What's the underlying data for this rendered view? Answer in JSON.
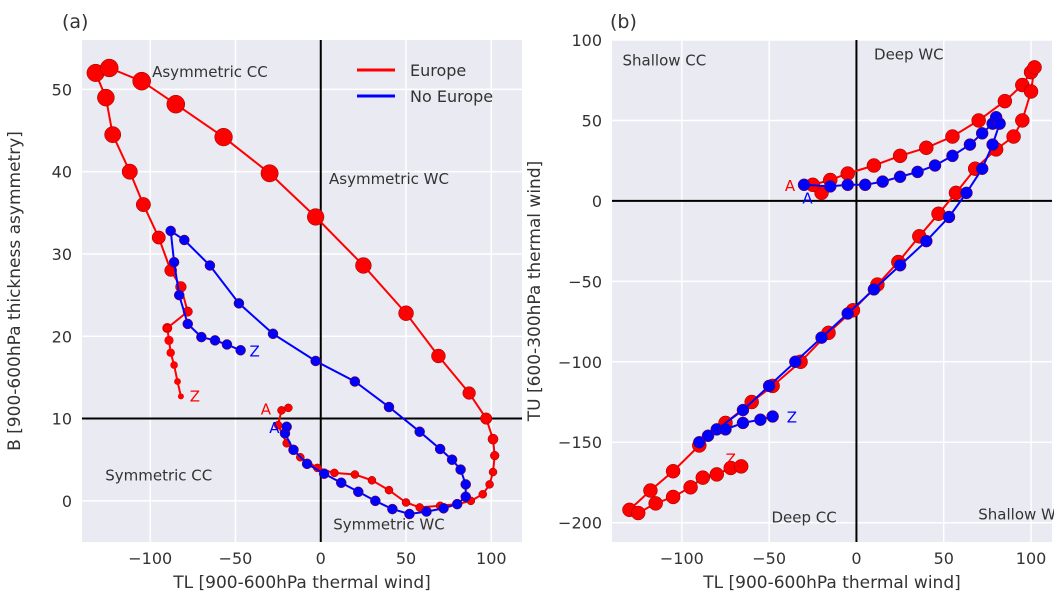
{
  "chart_data": [
    {
      "id": "a",
      "type": "scatter",
      "panel_label": "(a)",
      "xlabel": "TL [900-600hPa thermal wind]",
      "ylabel": "B [900-600hPa thickness asymmetry]",
      "xlim": [
        -140,
        118
      ],
      "ylim": [
        -5,
        56
      ],
      "xticks": [
        -100,
        -50,
        0,
        50,
        100
      ],
      "yticks": [
        0,
        10,
        20,
        30,
        40,
        50
      ],
      "xtick_labels": [
        "−100",
        "−50",
        "0",
        "50",
        "100"
      ],
      "ytick_labels": [
        "0",
        "10",
        "20",
        "30",
        "40",
        "50"
      ],
      "crosshair": {
        "x": 0,
        "y": 10
      },
      "grid": true,
      "background": "#eaeaf2",
      "legend": {
        "position": "top-right",
        "entries": [
          {
            "label": "Europe",
            "color": "#ff0000"
          },
          {
            "label": "No Europe",
            "color": "#0000ff"
          }
        ]
      },
      "quadrant_labels": [
        {
          "text": "Asymmetric CC",
          "x": -65,
          "y": 51.5
        },
        {
          "text": "Asymmetric WC",
          "x": 40,
          "y": 38.5
        },
        {
          "text": "Symmetric CC",
          "x": -95,
          "y": 2.5
        },
        {
          "text": "Symmetric WC",
          "x": 40,
          "y": -3.5
        }
      ],
      "series": [
        {
          "name": "Europe",
          "color": "#ff0000",
          "points": [
            [
              -90,
              21
            ],
            [
              -78,
              23
            ],
            [
              -82,
              26
            ],
            [
              -88,
              28
            ],
            [
              -95,
              32
            ],
            [
              -104,
              36
            ],
            [
              -112,
              40
            ],
            [
              -122,
              44.5
            ],
            [
              -126,
              49
            ],
            [
              -132,
              52
            ],
            [
              -124,
              52.6
            ],
            [
              -105,
              51
            ],
            [
              -85,
              48.2
            ],
            [
              -57,
              44.2
            ],
            [
              -30,
              39.8
            ],
            [
              -3,
              34.5
            ],
            [
              25,
              28.6
            ],
            [
              50,
              22.8
            ],
            [
              69,
              17.6
            ],
            [
              87,
              13.1
            ],
            [
              97,
              10
            ],
            [
              101,
              7.5
            ],
            [
              102,
              5.5
            ],
            [
              101,
              3.5
            ],
            [
              99,
              2
            ],
            [
              95,
              0.8
            ],
            [
              88,
              0
            ],
            [
              80,
              -0.4
            ],
            [
              70,
              -0.6
            ],
            [
              58,
              -0.8
            ],
            [
              50,
              -0.2
            ],
            [
              40,
              1.3
            ],
            [
              30,
              2.5
            ],
            [
              20,
              3.2
            ],
            [
              8,
              3.4
            ],
            [
              -2,
              4
            ],
            [
              -12,
              5.3
            ],
            [
              -20,
              7
            ],
            [
              -25,
              9.2
            ],
            [
              -23,
              11
            ],
            [
              -19,
              11.3
            ]
          ],
          "markers": {
            "sizes_grow": true
          },
          "end_labels": {
            "start": "A",
            "end": "Z",
            "start_at": [
              -24,
              11.2
            ],
            "end_at": [
              -82,
              12.8
            ]
          },
          "tail": [
            [
              -82,
              12.7
            ],
            [
              -84,
              14.5
            ],
            [
              -86,
              16.5
            ],
            [
              -88,
              18
            ],
            [
              -89,
              19.5
            ],
            [
              -90,
              21
            ]
          ]
        },
        {
          "name": "No Europe",
          "color": "#0000ff",
          "points": [
            [
              -47,
              18.3
            ],
            [
              -55,
              19
            ],
            [
              -62,
              19.5
            ],
            [
              -70,
              19.9
            ],
            [
              -78,
              21.5
            ],
            [
              -83,
              25
            ],
            [
              -86,
              29
            ],
            [
              -88,
              32.8
            ],
            [
              -80,
              31.7
            ],
            [
              -65,
              28.6
            ],
            [
              -48,
              24
            ],
            [
              -28,
              20.3
            ],
            [
              -3,
              17
            ],
            [
              20,
              14.5
            ],
            [
              40,
              11.4
            ],
            [
              58,
              8.4
            ],
            [
              70,
              6.3
            ],
            [
              77,
              5
            ],
            [
              82,
              3.8
            ],
            [
              85,
              2
            ],
            [
              85,
              0.5
            ],
            [
              80,
              -0.4
            ],
            [
              72,
              -0.9
            ],
            [
              62,
              -1.3
            ],
            [
              52,
              -1.6
            ],
            [
              42,
              -1
            ],
            [
              32,
              0
            ],
            [
              22,
              1.1
            ],
            [
              12,
              2.2
            ],
            [
              2,
              3.3
            ],
            [
              -8,
              4.5
            ],
            [
              -16,
              6.2
            ],
            [
              -21,
              8.2
            ],
            [
              -20,
              9
            ]
          ],
          "markers": {
            "sizes_grow": false
          },
          "end_labels": {
            "start": "A",
            "end": "Z",
            "start_at": [
              -19,
              9
            ],
            "end_at": [
              -47,
              18.3
            ]
          }
        }
      ]
    },
    {
      "id": "b",
      "type": "scatter",
      "panel_label": "(b)",
      "xlabel": "TL [900-600hPa thermal wind]",
      "ylabel": "TU [600-300hPa thermal wind]",
      "xlim": [
        -140,
        112
      ],
      "ylim": [
        -212,
        100
      ],
      "xticks": [
        -100,
        -50,
        0,
        50,
        100
      ],
      "yticks": [
        -200,
        -150,
        -100,
        -50,
        0,
        50,
        100
      ],
      "xtick_labels": [
        "−100",
        "−50",
        "0",
        "50",
        "100"
      ],
      "ytick_labels": [
        "−200",
        "−150",
        "−100",
        "−50",
        "0",
        "50",
        "100"
      ],
      "crosshair": {
        "x": 0,
        "y": 0
      },
      "grid": true,
      "background": "#eaeaf2",
      "quadrant_labels": [
        {
          "text": "Shallow CC",
          "x": -110,
          "y": 84
        },
        {
          "text": "Deep WC",
          "x": 30,
          "y": 88
        },
        {
          "text": "Deep CC",
          "x": -30,
          "y": -200
        },
        {
          "text": "Shallow WC",
          "x": 95,
          "y": -198
        }
      ],
      "series": [
        {
          "name": "Europe",
          "color": "#ff0000",
          "points": [
            [
              -20,
              5
            ],
            [
              -25,
              10
            ],
            [
              -15,
              13
            ],
            [
              -5,
              17
            ],
            [
              10,
              22
            ],
            [
              25,
              28
            ],
            [
              40,
              33
            ],
            [
              55,
              40
            ],
            [
              70,
              50
            ],
            [
              85,
              62
            ],
            [
              95,
              72
            ],
            [
              100,
              80
            ],
            [
              102,
              83
            ],
            [
              100,
              68
            ],
            [
              95,
              50
            ],
            [
              90,
              40
            ],
            [
              80,
              32
            ],
            [
              68,
              20
            ],
            [
              57,
              5
            ],
            [
              47,
              -8
            ],
            [
              36,
              -22
            ],
            [
              24,
              -38
            ],
            [
              12,
              -52
            ],
            [
              -2,
              -68
            ],
            [
              -16,
              -82
            ],
            [
              -32,
              -100
            ],
            [
              -48,
              -115
            ],
            [
              -60,
              -125
            ],
            [
              -75,
              -138
            ],
            [
              -90,
              -152
            ],
            [
              -105,
              -168
            ],
            [
              -118,
              -180
            ],
            [
              -130,
              -192
            ],
            [
              -125,
              -194
            ],
            [
              -115,
              -188
            ],
            [
              -105,
              -184
            ],
            [
              -95,
              -178
            ],
            [
              -88,
              -172
            ],
            [
              -80,
              -170
            ],
            [
              -72,
              -166
            ],
            [
              -66,
              -165
            ]
          ],
          "end_labels": {
            "start": "A",
            "end": "Z",
            "start_at": [
              -30,
              10
            ],
            "end_at": [
              -80,
              -160
            ]
          }
        },
        {
          "name": "No Europe",
          "color": "#0000ff",
          "points": [
            [
              -30,
              10
            ],
            [
              -15,
              9
            ],
            [
              -5,
              10
            ],
            [
              5,
              10
            ],
            [
              15,
              12
            ],
            [
              25,
              15
            ],
            [
              35,
              18
            ],
            [
              45,
              22
            ],
            [
              55,
              28
            ],
            [
              65,
              35
            ],
            [
              72,
              42
            ],
            [
              78,
              48
            ],
            [
              80,
              52
            ],
            [
              82,
              48
            ],
            [
              78,
              35
            ],
            [
              72,
              20
            ],
            [
              63,
              5
            ],
            [
              53,
              -10
            ],
            [
              40,
              -25
            ],
            [
              25,
              -40
            ],
            [
              10,
              -55
            ],
            [
              -5,
              -70
            ],
            [
              -20,
              -85
            ],
            [
              -35,
              -100
            ],
            [
              -50,
              -115
            ],
            [
              -65,
              -130
            ],
            [
              -80,
              -142
            ],
            [
              -90,
              -150
            ],
            [
              -85,
              -146
            ],
            [
              -75,
              -142
            ],
            [
              -65,
              -138
            ],
            [
              -55,
              -136
            ],
            [
              -48,
              -134
            ]
          ],
          "end_labels": {
            "start": "A",
            "end": "Z",
            "start_at": [
              -20,
              2
            ],
            "end_at": [
              -45,
              -134
            ]
          }
        }
      ]
    }
  ]
}
